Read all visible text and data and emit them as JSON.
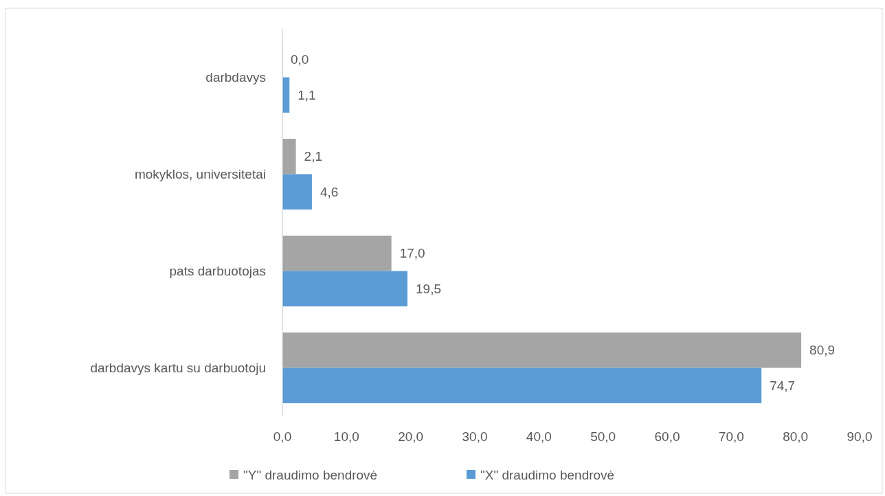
{
  "chart_data": {
    "type": "bar",
    "orientation": "horizontal",
    "categories": [
      "darbdavys",
      "mokyklos, universitetai",
      "pats darbuotojas",
      "darbdavys kartu su darbuotoju"
    ],
    "series": [
      {
        "name": "\"Y\" draudimo bendrovė",
        "color": "#a5a5a5",
        "values": [
          0.0,
          2.1,
          17.0,
          80.9
        ],
        "value_labels": [
          "0,0",
          "2,1",
          "17,0",
          "80,9"
        ]
      },
      {
        "name": "\"X\" draudimo bendrovė",
        "color": "#5b9bd5",
        "values": [
          1.1,
          4.6,
          19.5,
          74.7
        ],
        "value_labels": [
          "1,1",
          "4,6",
          "19,5",
          "74,7"
        ]
      }
    ],
    "xlim": [
      0,
      90
    ],
    "xticks": [
      {
        "value": 0,
        "label": "0,0"
      },
      {
        "value": 10,
        "label": "10,0"
      },
      {
        "value": 20,
        "label": "20,0"
      },
      {
        "value": 30,
        "label": "30,0"
      },
      {
        "value": 40,
        "label": "40,0"
      },
      {
        "value": 50,
        "label": "50,0"
      },
      {
        "value": 60,
        "label": "60,0"
      },
      {
        "value": 70,
        "label": "70,0"
      },
      {
        "value": 80,
        "label": "80,0"
      },
      {
        "value": 90,
        "label": "90,0"
      }
    ],
    "grid": false,
    "legend": "bottom"
  }
}
